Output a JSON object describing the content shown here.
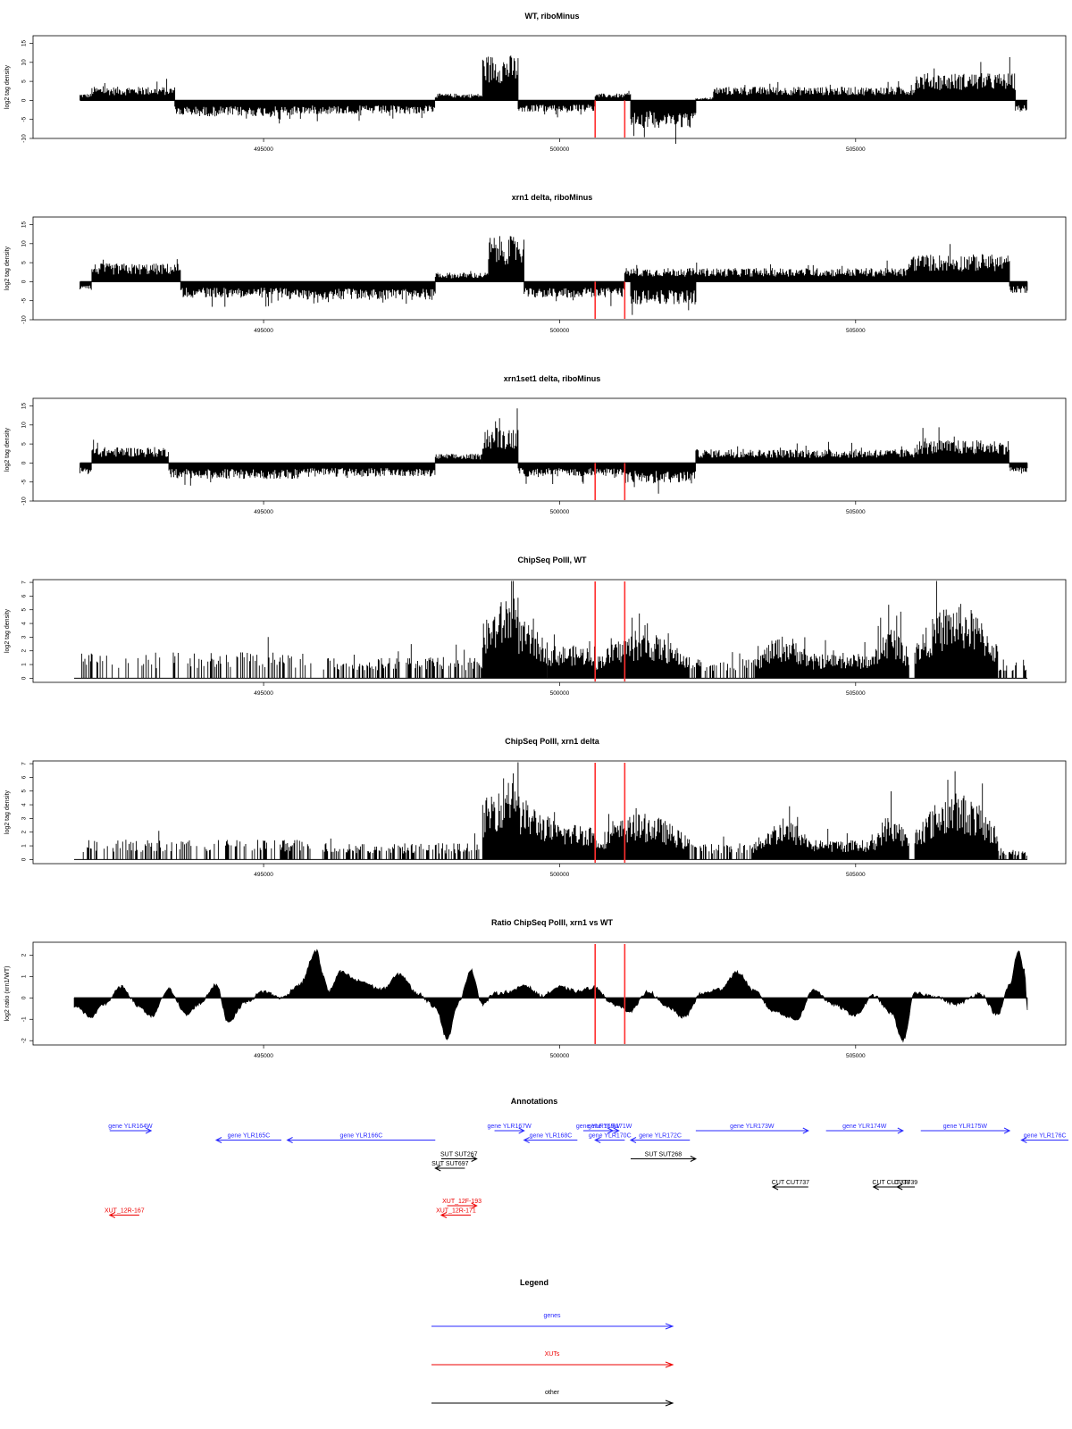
{
  "figure": {
    "x_range": [
      491800,
      507900
    ],
    "x_ticks": [
      495000,
      500000,
      505000
    ],
    "x_tick_labels": [
      "495000",
      "500000",
      "505000"
    ],
    "red_markers": [
      500600,
      501100
    ],
    "colors": {
      "signal": "#000000",
      "marker": "#ff3030",
      "gene": "#2a2aff",
      "xut": "#ee0000",
      "other": "#000000"
    }
  },
  "chart_data": [
    {
      "type": "bar",
      "title": "WT, riboMinus",
      "ylabel": "log2 tag density",
      "ylim": [
        -10,
        17
      ],
      "yticks": [
        -10,
        -5,
        0,
        5,
        10,
        15
      ],
      "ytick_labels": [
        "-10",
        "-5",
        "0",
        "5",
        "10",
        "15"
      ],
      "baseline": true,
      "segments": [
        {
          "start": 491900,
          "end": 492100,
          "sign": 1,
          "amp": 1.5
        },
        {
          "start": 492100,
          "end": 493500,
          "sign": 1,
          "amp": 3
        },
        {
          "start": 493500,
          "end": 495500,
          "sign": -1,
          "amp": 3.5
        },
        {
          "start": 495500,
          "end": 497900,
          "sign": -1,
          "amp": 3
        },
        {
          "start": 497900,
          "end": 498700,
          "sign": 1,
          "amp": 1.5
        },
        {
          "start": 498700,
          "end": 499300,
          "sign": 1,
          "amp": 10
        },
        {
          "start": 499300,
          "end": 500600,
          "sign": -1,
          "amp": 2.5
        },
        {
          "start": 500600,
          "end": 501200,
          "sign": 1,
          "amp": 1.5
        },
        {
          "start": 501200,
          "end": 502300,
          "sign": -1,
          "amp": 6
        },
        {
          "start": 502300,
          "end": 502600,
          "sign": 1,
          "amp": 0.5
        },
        {
          "start": 502600,
          "end": 506000,
          "sign": 1,
          "amp": 3
        },
        {
          "start": 506000,
          "end": 507700,
          "sign": 1,
          "amp": 6
        },
        {
          "start": 507700,
          "end": 507900,
          "sign": -1,
          "amp": 2.5
        }
      ]
    },
    {
      "type": "bar",
      "title": "xrn1 delta, riboMinus",
      "ylabel": "log2 tag density",
      "ylim": [
        -10,
        17
      ],
      "yticks": [
        -10,
        -5,
        0,
        5,
        10,
        15
      ],
      "ytick_labels": [
        "-10",
        "-5",
        "0",
        "5",
        "10",
        "15"
      ],
      "baseline": true,
      "segments": [
        {
          "start": 491900,
          "end": 492100,
          "sign": -1,
          "amp": 2
        },
        {
          "start": 492100,
          "end": 493600,
          "sign": 1,
          "amp": 4
        },
        {
          "start": 493600,
          "end": 495400,
          "sign": -1,
          "amp": 3.5
        },
        {
          "start": 495400,
          "end": 497900,
          "sign": -1,
          "amp": 4
        },
        {
          "start": 497900,
          "end": 498800,
          "sign": 1,
          "amp": 2
        },
        {
          "start": 498800,
          "end": 499400,
          "sign": 1,
          "amp": 10
        },
        {
          "start": 499400,
          "end": 501100,
          "sign": -1,
          "amp": 3.5
        },
        {
          "start": 501100,
          "end": 502300,
          "sign": 1,
          "amp": 3
        },
        {
          "start": 501200,
          "end": 502300,
          "sign": -1,
          "amp": 5
        },
        {
          "start": 502300,
          "end": 505900,
          "sign": 1,
          "amp": 3
        },
        {
          "start": 505900,
          "end": 507600,
          "sign": 1,
          "amp": 6
        },
        {
          "start": 507600,
          "end": 507900,
          "sign": -1,
          "amp": 2.5
        }
      ]
    },
    {
      "type": "bar",
      "title": "xrn1set1 delta, riboMinus",
      "ylabel": "log2 tag density",
      "ylim": [
        -10,
        17
      ],
      "yticks": [
        -10,
        -5,
        0,
        5,
        10,
        15
      ],
      "ytick_labels": [
        "-10",
        "-5",
        "0",
        "5",
        "10",
        "15"
      ],
      "baseline": true,
      "segments": [
        {
          "start": 491900,
          "end": 492100,
          "sign": -1,
          "amp": 2.5
        },
        {
          "start": 492100,
          "end": 493400,
          "sign": 1,
          "amp": 3.5
        },
        {
          "start": 493400,
          "end": 495600,
          "sign": -1,
          "amp": 3.5
        },
        {
          "start": 495600,
          "end": 497900,
          "sign": -1,
          "amp": 3
        },
        {
          "start": 497900,
          "end": 498700,
          "sign": 1,
          "amp": 2
        },
        {
          "start": 498700,
          "end": 499300,
          "sign": 1,
          "amp": 8
        },
        {
          "start": 499300,
          "end": 501100,
          "sign": -1,
          "amp": 3
        },
        {
          "start": 501100,
          "end": 502300,
          "sign": -1,
          "amp": 4.5
        },
        {
          "start": 502300,
          "end": 506000,
          "sign": 1,
          "amp": 3
        },
        {
          "start": 506000,
          "end": 507600,
          "sign": 1,
          "amp": 5
        },
        {
          "start": 507600,
          "end": 507900,
          "sign": -1,
          "amp": 2
        }
      ]
    },
    {
      "type": "bar",
      "title": "ChipSeq PolII, WT",
      "ylabel": "log2 tag density",
      "ylim": [
        -0.3,
        7.2
      ],
      "yticks": [
        0,
        1,
        2,
        3,
        4,
        5,
        6,
        7
      ],
      "ytick_labels": [
        "0",
        "1",
        "2",
        "3",
        "4",
        "5",
        "6",
        "7"
      ],
      "baseline": false,
      "segments": [
        {
          "start": 491900,
          "end": 495800,
          "sign": 1,
          "amp": 1.6,
          "sparse": 0.35
        },
        {
          "start": 496000,
          "end": 498700,
          "sign": 1,
          "amp": 1.3,
          "sparse": 0.5
        },
        {
          "start": 498700,
          "end": 499300,
          "sign": 1,
          "amp": 6,
          "shape": "rise"
        },
        {
          "start": 499300,
          "end": 499800,
          "sign": 1,
          "amp": 3.8,
          "shape": "fall"
        },
        {
          "start": 499800,
          "end": 500600,
          "sign": 1,
          "amp": 2
        },
        {
          "start": 500600,
          "end": 502200,
          "sign": 1,
          "amp": 2.8,
          "shape": "hump"
        },
        {
          "start": 502200,
          "end": 503300,
          "sign": 1,
          "amp": 1.2,
          "sparse": 0.4
        },
        {
          "start": 503300,
          "end": 504300,
          "sign": 1,
          "amp": 2.6,
          "shape": "hump"
        },
        {
          "start": 504300,
          "end": 505300,
          "sign": 1,
          "amp": 1.5
        },
        {
          "start": 505300,
          "end": 505900,
          "sign": 1,
          "amp": 3.2,
          "shape": "hump"
        },
        {
          "start": 506000,
          "end": 507400,
          "sign": 1,
          "amp": 4.6,
          "shape": "hump"
        },
        {
          "start": 507400,
          "end": 507900,
          "sign": 1,
          "amp": 1.2,
          "sparse": 0.5
        }
      ]
    },
    {
      "type": "bar",
      "title": "ChipSeq PolII, xrn1 delta",
      "ylabel": "log2 tag density",
      "ylim": [
        -0.3,
        7.2
      ],
      "yticks": [
        0,
        1,
        2,
        3,
        4,
        5,
        6,
        7
      ],
      "ytick_labels": [
        "0",
        "1",
        "2",
        "3",
        "4",
        "5",
        "6",
        "7"
      ],
      "baseline": false,
      "segments": [
        {
          "start": 491900,
          "end": 495800,
          "sign": 1,
          "amp": 1.2,
          "sparse": 0.4
        },
        {
          "start": 496000,
          "end": 498700,
          "sign": 1,
          "amp": 1.0,
          "sparse": 0.5
        },
        {
          "start": 498700,
          "end": 499300,
          "sign": 1,
          "amp": 6.3,
          "shape": "rise"
        },
        {
          "start": 499300,
          "end": 499900,
          "sign": 1,
          "amp": 4.0,
          "shape": "fall"
        },
        {
          "start": 499900,
          "end": 500600,
          "sign": 1,
          "amp": 2.2
        },
        {
          "start": 500600,
          "end": 502200,
          "sign": 1,
          "amp": 2.8,
          "shape": "hump"
        },
        {
          "start": 502200,
          "end": 503300,
          "sign": 1,
          "amp": 1.0,
          "sparse": 0.4
        },
        {
          "start": 503300,
          "end": 504300,
          "sign": 1,
          "amp": 2.4,
          "shape": "hump"
        },
        {
          "start": 504300,
          "end": 505300,
          "sign": 1,
          "amp": 1.2
        },
        {
          "start": 505300,
          "end": 505900,
          "sign": 1,
          "amp": 2.8,
          "shape": "hump"
        },
        {
          "start": 506000,
          "end": 507400,
          "sign": 1,
          "amp": 4.1,
          "shape": "hump"
        },
        {
          "start": 507400,
          "end": 507900,
          "sign": 1,
          "amp": 0.6,
          "sparse": 0.5
        }
      ]
    },
    {
      "type": "area",
      "title": "Ratio ChipSeq PolII, xrn1 vs WT",
      "ylabel": "log2 ratio (xrn1/WT)",
      "ylim": [
        -2.2,
        2.6
      ],
      "yticks": [
        -2,
        -1,
        0,
        1,
        2
      ],
      "ytick_labels": [
        "-2",
        "-1",
        "0",
        "1",
        "2"
      ],
      "baseline": true,
      "x": [
        491800,
        492100,
        492300,
        492600,
        492900,
        493100,
        493400,
        493700,
        493900,
        494200,
        494400,
        494700,
        495000,
        495300,
        495600,
        495900,
        496000,
        496100,
        496300,
        496600,
        497000,
        497300,
        497600,
        497900,
        498100,
        498300,
        498500,
        498700,
        498900,
        499200,
        499400,
        499700,
        500000,
        500300,
        500600,
        500900,
        501200,
        501500,
        501800,
        502100,
        502400,
        502700,
        503000,
        503300,
        503600,
        504000,
        504300,
        504600,
        505000,
        505300,
        505600,
        505800,
        506000,
        506300,
        506700,
        507100,
        507400,
        507600,
        507750,
        507850,
        507900
      ],
      "y": [
        -0.4,
        -0.9,
        -0.3,
        0.5,
        -0.4,
        -0.9,
        0.4,
        -0.8,
        -0.3,
        0.6,
        -1.1,
        -0.2,
        0.3,
        0.0,
        0.6,
        2.2,
        1.1,
        0.3,
        1.2,
        0.8,
        0.4,
        1.1,
        0.2,
        -0.4,
        -1.9,
        -0.2,
        1.3,
        -0.3,
        0.2,
        0.3,
        0.6,
        0.1,
        0.5,
        0.3,
        0.5,
        -0.3,
        -0.6,
        0.3,
        -0.4,
        -0.9,
        0.2,
        0.4,
        1.2,
        0.3,
        -0.6,
        -1.0,
        0.4,
        -0.3,
        -0.8,
        0.1,
        -0.7,
        -2.0,
        0.2,
        0.1,
        -0.3,
        0.2,
        -0.8,
        0.6,
        2.2,
        1.3,
        -0.6
      ]
    }
  ],
  "annotations": {
    "title": "Annotations",
    "genes": [
      {
        "label": "gene YLR164W",
        "start": 492400,
        "end": 493100,
        "dir": "right",
        "row": 0
      },
      {
        "label": "gene YLR165C",
        "start": 494200,
        "end": 495300,
        "dir": "left",
        "row": 1
      },
      {
        "label": "gene YLR166C",
        "start": 495400,
        "end": 497900,
        "dir": "left",
        "row": 1
      },
      {
        "label": "gene YLR167W",
        "start": 498900,
        "end": 499400,
        "dir": "right",
        "row": 0
      },
      {
        "label": "gene YLR168C",
        "start": 499400,
        "end": 500300,
        "dir": "left",
        "row": 1
      },
      {
        "label": "gene YLR169W",
        "start": 500400,
        "end": 500900,
        "dir": "right",
        "row": 0
      },
      {
        "label": "gene YLR171W",
        "start": 500700,
        "end": 501000,
        "dir": "right",
        "row": 0
      },
      {
        "label": "gene YLR170C",
        "start": 500600,
        "end": 501100,
        "dir": "left",
        "row": 1
      },
      {
        "label": "gene YLR172C",
        "start": 501200,
        "end": 502200,
        "dir": "left",
        "row": 1
      },
      {
        "label": "gene YLR173W",
        "start": 502300,
        "end": 504200,
        "dir": "right",
        "row": 0
      },
      {
        "label": "gene YLR174W",
        "start": 504500,
        "end": 505800,
        "dir": "right",
        "row": 0
      },
      {
        "label": "gene YLR175W",
        "start": 506100,
        "end": 507600,
        "dir": "right",
        "row": 0
      },
      {
        "label": "gene YLR176C",
        "start": 507800,
        "end": 509200,
        "dir": "left",
        "row": 1
      }
    ],
    "others": [
      {
        "label": "SUT SUT267",
        "start": 498000,
        "end": 498600,
        "dir": "right",
        "row": 3
      },
      {
        "label": "SUT SUT697",
        "start": 497900,
        "end": 498400,
        "dir": "left",
        "row": 4
      },
      {
        "label": "SUT SUT268",
        "start": 501200,
        "end": 502300,
        "dir": "right",
        "row": 3
      },
      {
        "label": "CUT CUT737",
        "start": 503600,
        "end": 504200,
        "dir": "left",
        "row": 6
      },
      {
        "label": "CUT CUT738",
        "start": 505300,
        "end": 505900,
        "dir": "left",
        "row": 6
      },
      {
        "label": "CUT739",
        "start": 505700,
        "end": 506000,
        "dir": "left",
        "row": 6
      }
    ],
    "xuts": [
      {
        "label": "XUT_12R-167",
        "start": 492400,
        "end": 492900,
        "dir": "left",
        "row": 9
      },
      {
        "label": "XUT_12F-193",
        "start": 498100,
        "end": 498600,
        "dir": "right",
        "row": 8
      },
      {
        "label": "XUT_12R-171",
        "start": 498000,
        "end": 498500,
        "dir": "left",
        "row": 9
      }
    ]
  },
  "legend": {
    "title": "Legend",
    "items": [
      {
        "label": "genes",
        "color": "#2a2aff"
      },
      {
        "label": "XUTs",
        "color": "#ee0000"
      },
      {
        "label": "other",
        "color": "#000000"
      }
    ]
  }
}
